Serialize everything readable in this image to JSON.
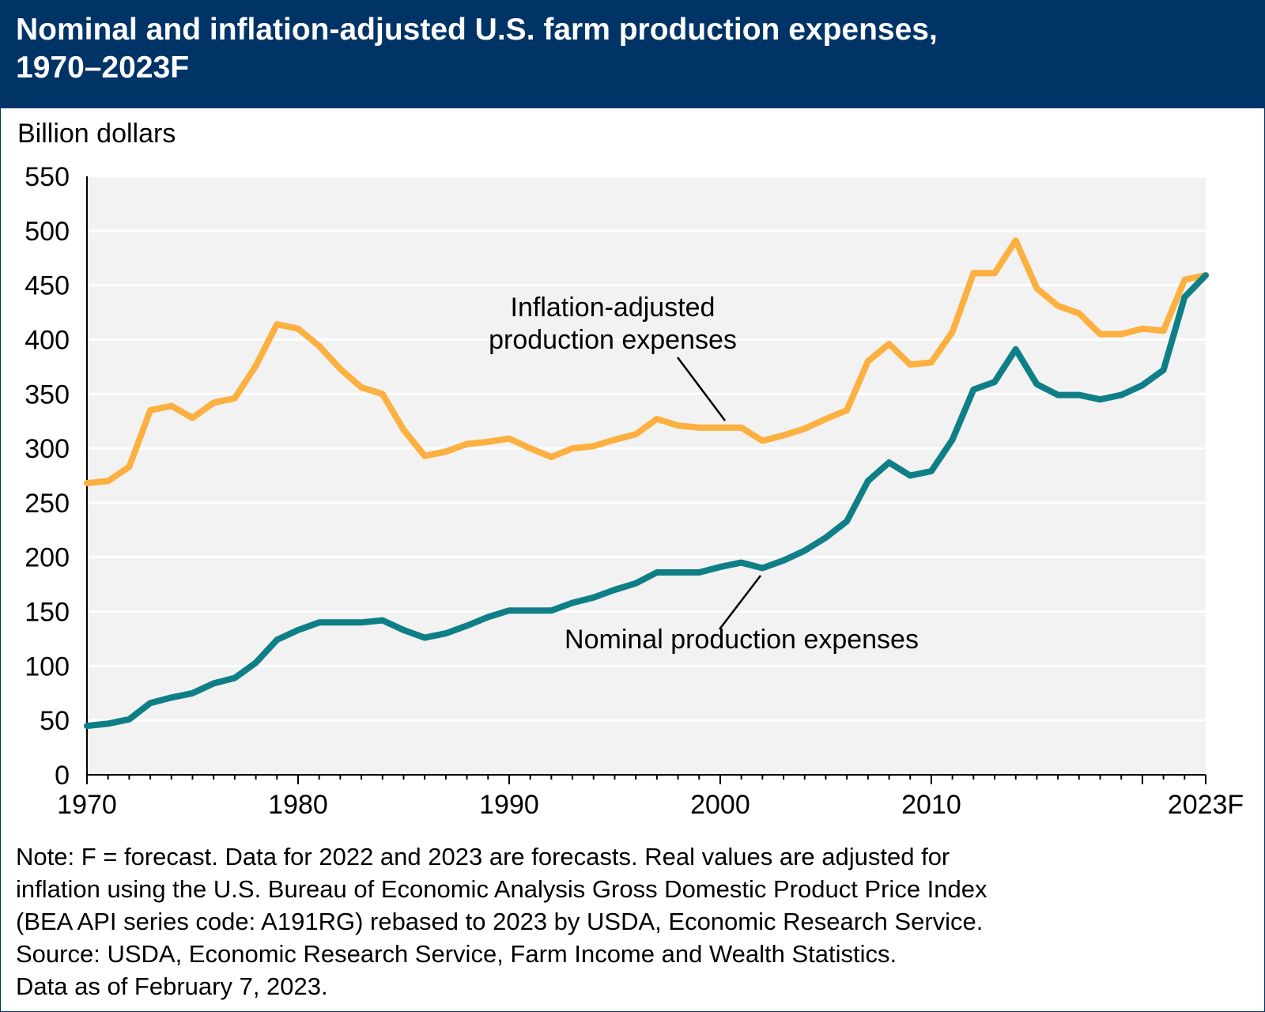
{
  "header": {
    "title": "Nominal and inflation-adjusted U.S. farm production expenses,\n1970–2023F"
  },
  "chart_data": {
    "type": "line",
    "title": "Nominal and inflation-adjusted U.S. farm production expenses, 1970–2023F",
    "ylabel": "Billion dollars",
    "xlabel": "",
    "ylim": [
      0,
      550
    ],
    "xlim": [
      1970,
      2023
    ],
    "y_ticks": [
      0,
      50,
      100,
      150,
      200,
      250,
      300,
      350,
      400,
      450,
      500,
      550
    ],
    "x_tick_labels": [
      {
        "x": 1970,
        "label": "1970"
      },
      {
        "x": 1980,
        "label": "1980"
      },
      {
        "x": 1990,
        "label": "1990"
      },
      {
        "x": 2000,
        "label": "2000"
      },
      {
        "x": 2010,
        "label": "2010"
      },
      {
        "x": 2023,
        "label": "2023F"
      }
    ],
    "grid": "horizontal",
    "background": "#f2f2f2",
    "x": [
      1970,
      1971,
      1972,
      1973,
      1974,
      1975,
      1976,
      1977,
      1978,
      1979,
      1980,
      1981,
      1982,
      1983,
      1984,
      1985,
      1986,
      1987,
      1988,
      1989,
      1990,
      1991,
      1992,
      1993,
      1994,
      1995,
      1996,
      1997,
      1998,
      1999,
      2000,
      2001,
      2002,
      2003,
      2004,
      2005,
      2006,
      2007,
      2008,
      2009,
      2010,
      2011,
      2012,
      2013,
      2014,
      2015,
      2016,
      2017,
      2018,
      2019,
      2020,
      2021,
      2022,
      2023
    ],
    "series": [
      {
        "name": "Inflation-adjusted production expenses",
        "color": "#fbb040",
        "values": [
          268,
          270,
          283,
          335,
          339,
          328,
          342,
          346,
          376,
          414,
          410,
          394,
          373,
          356,
          350,
          317,
          293,
          297,
          304,
          306,
          309,
          300,
          292,
          300,
          302,
          308,
          313,
          327,
          321,
          319,
          319,
          319,
          307,
          312,
          318,
          327,
          335,
          380,
          396,
          377,
          379,
          407,
          461,
          461,
          491,
          447,
          431,
          424,
          405,
          405,
          410,
          408,
          455,
          459
        ]
      },
      {
        "name": "Nominal production expenses",
        "color": "#0f7f87",
        "values": [
          45,
          47,
          51,
          66,
          71,
          75,
          84,
          89,
          103,
          124,
          133,
          140,
          140,
          140,
          142,
          133,
          126,
          130,
          137,
          145,
          151,
          151,
          151,
          158,
          163,
          170,
          176,
          186,
          186,
          186,
          191,
          195,
          190,
          197,
          206,
          218,
          233,
          270,
          287,
          275,
          279,
          308,
          354,
          361,
          391,
          359,
          349,
          349,
          345,
          349,
          358,
          372,
          439,
          459
        ]
      }
    ],
    "annotations": [
      {
        "text": "Inflation-adjusted\nproduction expenses",
        "series": 0
      },
      {
        "text": "Nominal production expenses",
        "series": 1
      }
    ]
  },
  "note": {
    "lines": [
      "Note: F = forecast. Data for 2022 and 2023 are forecasts. Real values are adjusted for",
      "inflation using the U.S. Bureau of Economic Analysis Gross Domestic Product Price Index",
      "(BEA API series code: A191RG) rebased to 2023 by USDA, Economic Research Service.",
      "Source: USDA, Economic Research Service, Farm Income and Wealth Statistics.",
      "Data as of February 7, 2023."
    ]
  }
}
